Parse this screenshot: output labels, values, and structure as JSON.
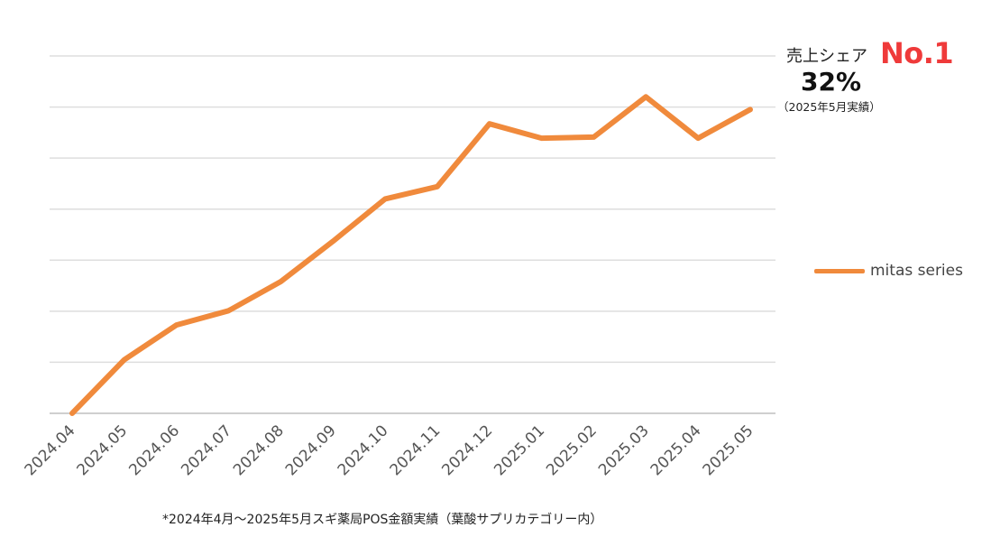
{
  "chart_data": {
    "type": "line",
    "categories": [
      "2024.04",
      "2024.05",
      "2024.06",
      "2024.07",
      "2024.08",
      "2024.09",
      "2024.10",
      "2024.11",
      "2024.12",
      "2025.01",
      "2025.02",
      "2025.03",
      "2025.04",
      "2025.05"
    ],
    "series": [
      {
        "name": "mitas series",
        "color": "#f08a3c",
        "values": [
          0.0,
          1.05,
          1.73,
          2.01,
          2.58,
          3.37,
          4.2,
          4.44,
          5.67,
          5.39,
          5.41,
          6.2,
          5.39,
          5.95
        ]
      }
    ],
    "ylim": [
      0,
      7
    ],
    "grid": true,
    "legend_position": "right",
    "y_tick_labels_shown": false,
    "x_tick_rotation": "45deg"
  },
  "callout": {
    "label": "売上シェア",
    "rank": "No.1",
    "percent": "32%",
    "note": "（2025年5月実績）",
    "rank_color": "#ef3a3a"
  },
  "legend": {
    "label": "mitas series"
  },
  "footnote": "*2024年4月～2025年5月スギ薬局POS金額実績（葉酸サプリカテゴリー内）"
}
